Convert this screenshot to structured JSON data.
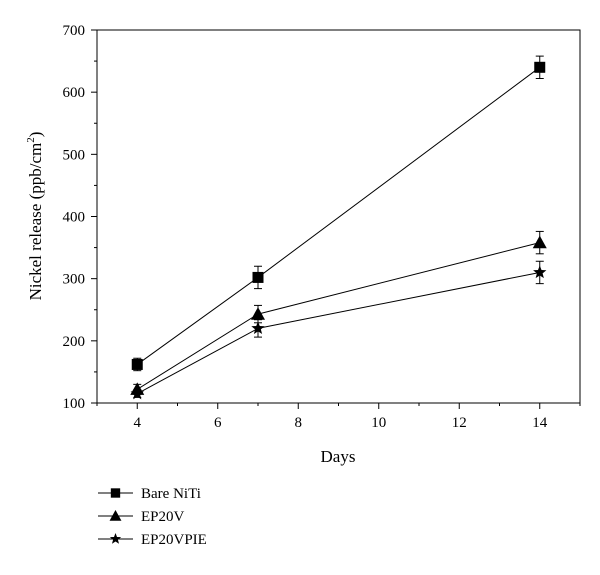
{
  "chart_data": {
    "type": "line",
    "xlabel": "Days",
    "ylabel_main": "Nickel release (ppb/cm",
    "ylabel_sup": "2",
    "ylabel_close": ")",
    "xlim": [
      3,
      15
    ],
    "ylim": [
      100,
      700
    ],
    "xticks": [
      4,
      6,
      8,
      10,
      12,
      14
    ],
    "yticks": [
      100,
      200,
      300,
      400,
      500,
      600,
      700
    ],
    "x": [
      4,
      7,
      14
    ],
    "series": [
      {
        "name": "Bare NiTi",
        "marker": "square",
        "values": [
          162,
          302,
          640
        ],
        "errors": [
          10,
          18,
          18
        ]
      },
      {
        "name": "EP20V",
        "marker": "triangle",
        "values": [
          122,
          243,
          358
        ],
        "errors": [
          8,
          14,
          18
        ]
      },
      {
        "name": "EP20VPIE",
        "marker": "star",
        "values": [
          115,
          220,
          310
        ],
        "errors": [
          6,
          14,
          18
        ]
      }
    ],
    "grid": false,
    "legend_position": "bottom-left, below plot"
  }
}
